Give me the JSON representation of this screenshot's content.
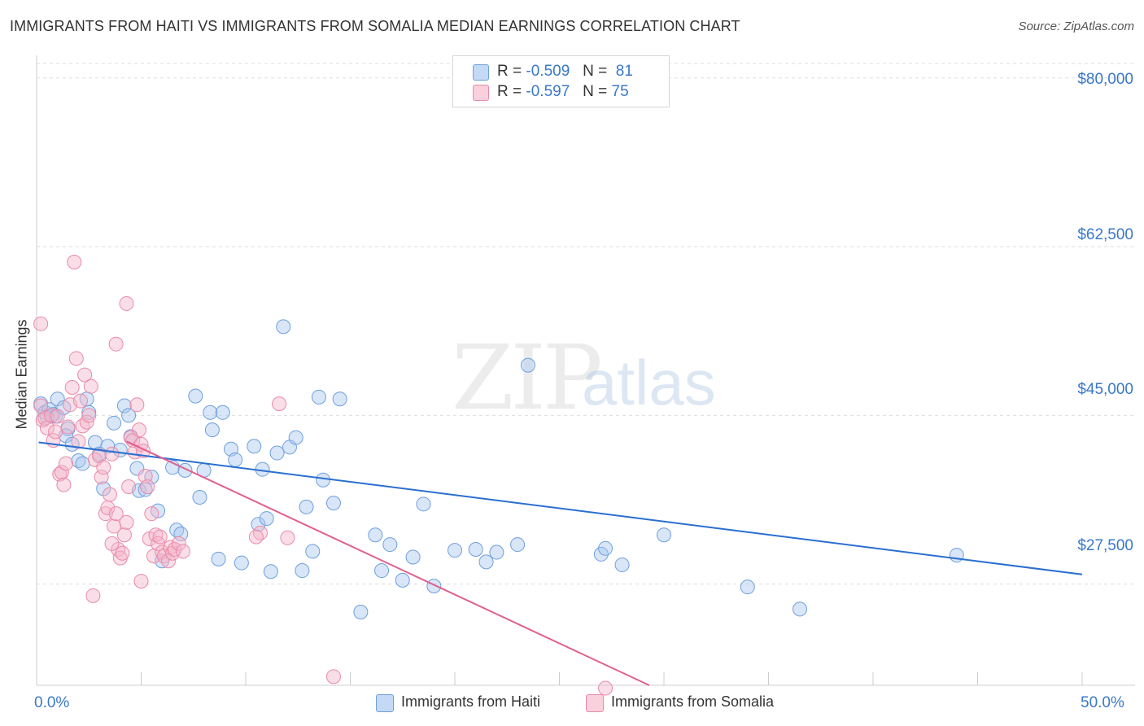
{
  "title": "IMMIGRANTS FROM HAITI VS IMMIGRANTS FROM SOMALIA MEDIAN EARNINGS CORRELATION CHART",
  "source": "Source: ZipAtlas.com",
  "watermark": {
    "zip": "ZIP",
    "atlas": "atlas"
  },
  "legend": {
    "rows": [
      {
        "r_label": "R =",
        "r_value": "-0.509",
        "n_label": "N =",
        "n_value": "81",
        "color": "#a9c8f0"
      },
      {
        "r_label": "R =",
        "r_value": "-0.597",
        "n_label": "N =",
        "n_value": "75",
        "color": "#f5b6c9"
      }
    ]
  },
  "bottom_legend": {
    "haiti": "Immigrants from Haiti",
    "somalia": "Immigrants from Somalia"
  },
  "colors": {
    "haiti_fill": "#a9c8f0",
    "haiti_stroke": "#6f9fdc",
    "haiti_line": "#2a6fd0",
    "somalia_fill": "#f5b6c9",
    "somalia_stroke": "#e98aa8",
    "somalia_line": "#e0608e",
    "axis_text": "#3a78c9"
  },
  "chart_data": {
    "type": "scatter",
    "title": "IMMIGRANTS FROM HAITI VS IMMIGRANTS FROM SOMALIA MEDIAN EARNINGS CORRELATION CHART",
    "xlabel": "",
    "ylabel": "Median Earnings",
    "xlim": [
      0,
      50
    ],
    "ylim": [
      17000,
      81500
    ],
    "x_tick_labels": [
      "0.0%",
      "50.0%"
    ],
    "y_ticks": [
      27500,
      45000,
      62500,
      80000
    ],
    "y_tick_labels": [
      "$27,500",
      "$45,000",
      "$62,500",
      "$80,000"
    ],
    "grid": true,
    "legend_position": "top-center",
    "series": [
      {
        "name": "Immigrants from Haiti",
        "trend": {
          "x": [
            0.1,
            50
          ],
          "y": [
            42200,
            28500
          ]
        },
        "points": [
          [
            0.2,
            46200
          ],
          [
            0.4,
            45300
          ],
          [
            0.6,
            45600
          ],
          [
            0.8,
            45100
          ],
          [
            1.0,
            46700
          ],
          [
            0.9,
            44900
          ],
          [
            1.3,
            45800
          ],
          [
            0.5,
            44800
          ],
          [
            1.5,
            43600
          ],
          [
            1.4,
            42900
          ],
          [
            1.7,
            42000
          ],
          [
            2.0,
            40300
          ],
          [
            2.2,
            40000
          ],
          [
            2.4,
            46700
          ],
          [
            2.5,
            45300
          ],
          [
            2.8,
            42200
          ],
          [
            3.0,
            41000
          ],
          [
            3.2,
            37400
          ],
          [
            3.4,
            41800
          ],
          [
            3.7,
            44200
          ],
          [
            4.0,
            41400
          ],
          [
            4.2,
            46000
          ],
          [
            4.4,
            45000
          ],
          [
            4.5,
            42800
          ],
          [
            4.8,
            39500
          ],
          [
            4.9,
            37200
          ],
          [
            5.2,
            37300
          ],
          [
            5.5,
            38600
          ],
          [
            5.8,
            35100
          ],
          [
            6.0,
            29900
          ],
          [
            6.5,
            39600
          ],
          [
            6.7,
            33100
          ],
          [
            6.9,
            32700
          ],
          [
            7.1,
            39300
          ],
          [
            7.6,
            47000
          ],
          [
            7.8,
            36500
          ],
          [
            8.0,
            39300
          ],
          [
            8.3,
            45300
          ],
          [
            8.4,
            43500
          ],
          [
            8.7,
            30100
          ],
          [
            8.9,
            45300
          ],
          [
            9.3,
            41500
          ],
          [
            9.5,
            40400
          ],
          [
            9.8,
            29700
          ],
          [
            10.4,
            41800
          ],
          [
            10.6,
            33700
          ],
          [
            10.8,
            39400
          ],
          [
            11.0,
            34300
          ],
          [
            11.2,
            28800
          ],
          [
            11.5,
            41100
          ],
          [
            11.8,
            54200
          ],
          [
            12.1,
            41700
          ],
          [
            12.4,
            42700
          ],
          [
            12.7,
            28900
          ],
          [
            12.9,
            35500
          ],
          [
            13.2,
            30900
          ],
          [
            13.7,
            38300
          ],
          [
            14.2,
            35900
          ],
          [
            13.5,
            46900
          ],
          [
            14.5,
            46700
          ],
          [
            15.5,
            24600
          ],
          [
            16.2,
            32600
          ],
          [
            16.5,
            28900
          ],
          [
            16.9,
            31600
          ],
          [
            17.5,
            27900
          ],
          [
            18.0,
            30300
          ],
          [
            18.5,
            35800
          ],
          [
            19.0,
            27300
          ],
          [
            20.0,
            31000
          ],
          [
            21.0,
            31100
          ],
          [
            21.5,
            29800
          ],
          [
            22.0,
            30800
          ],
          [
            23.0,
            31600
          ],
          [
            23.5,
            50200
          ],
          [
            27.0,
            30600
          ],
          [
            27.2,
            31200
          ],
          [
            28.0,
            29500
          ],
          [
            30.0,
            32600
          ],
          [
            34.0,
            27200
          ],
          [
            36.5,
            24900
          ],
          [
            44.0,
            30500
          ]
        ]
      },
      {
        "name": "Immigrants from Somalia",
        "trend": {
          "x": [
            4.3,
            29.3
          ],
          "y": [
            42300,
            17000
          ]
        },
        "points": [
          [
            0.2,
            46000
          ],
          [
            0.3,
            44500
          ],
          [
            0.4,
            44700
          ],
          [
            0.5,
            43700
          ],
          [
            0.7,
            45000
          ],
          [
            0.8,
            42400
          ],
          [
            0.9,
            43300
          ],
          [
            1.0,
            44900
          ],
          [
            1.1,
            38900
          ],
          [
            1.2,
            39100
          ],
          [
            1.3,
            37800
          ],
          [
            1.4,
            40000
          ],
          [
            1.5,
            43800
          ],
          [
            1.6,
            46100
          ],
          [
            1.7,
            47900
          ],
          [
            1.9,
            50900
          ],
          [
            2.0,
            42300
          ],
          [
            2.1,
            46500
          ],
          [
            2.2,
            43900
          ],
          [
            2.3,
            49200
          ],
          [
            2.4,
            44300
          ],
          [
            2.5,
            45000
          ],
          [
            2.6,
            48000
          ],
          [
            2.8,
            40400
          ],
          [
            3.0,
            40800
          ],
          [
            3.1,
            38600
          ],
          [
            3.2,
            39600
          ],
          [
            3.3,
            34800
          ],
          [
            3.4,
            35400
          ],
          [
            3.5,
            36800
          ],
          [
            3.6,
            41000
          ],
          [
            3.7,
            33500
          ],
          [
            3.8,
            34800
          ],
          [
            3.9,
            31100
          ],
          [
            4.0,
            30200
          ],
          [
            4.1,
            30700
          ],
          [
            4.2,
            32600
          ],
          [
            4.3,
            33900
          ],
          [
            4.4,
            37600
          ],
          [
            4.5,
            42700
          ],
          [
            4.6,
            42400
          ],
          [
            4.7,
            41200
          ],
          [
            4.8,
            46100
          ],
          [
            4.9,
            43500
          ],
          [
            5.0,
            42000
          ],
          [
            5.1,
            41300
          ],
          [
            5.2,
            38700
          ],
          [
            5.3,
            37600
          ],
          [
            5.4,
            32200
          ],
          [
            5.5,
            34800
          ],
          [
            5.6,
            30400
          ],
          [
            5.7,
            32600
          ],
          [
            5.8,
            31700
          ],
          [
            5.9,
            32400
          ],
          [
            6.0,
            30800
          ],
          [
            6.1,
            30400
          ],
          [
            6.3,
            29900
          ],
          [
            6.4,
            31300
          ],
          [
            6.5,
            30700
          ],
          [
            6.6,
            31100
          ],
          [
            6.8,
            31700
          ],
          [
            7.0,
            30900
          ],
          [
            0.2,
            54500
          ],
          [
            1.8,
            60900
          ],
          [
            3.6,
            31700
          ],
          [
            4.3,
            56600
          ],
          [
            3.8,
            52400
          ],
          [
            2.7,
            26300
          ],
          [
            5.0,
            27800
          ],
          [
            10.7,
            32800
          ],
          [
            10.5,
            32400
          ],
          [
            11.6,
            46200
          ],
          [
            12.0,
            32300
          ],
          [
            14.2,
            17900
          ],
          [
            27.2,
            16700
          ]
        ]
      }
    ]
  }
}
